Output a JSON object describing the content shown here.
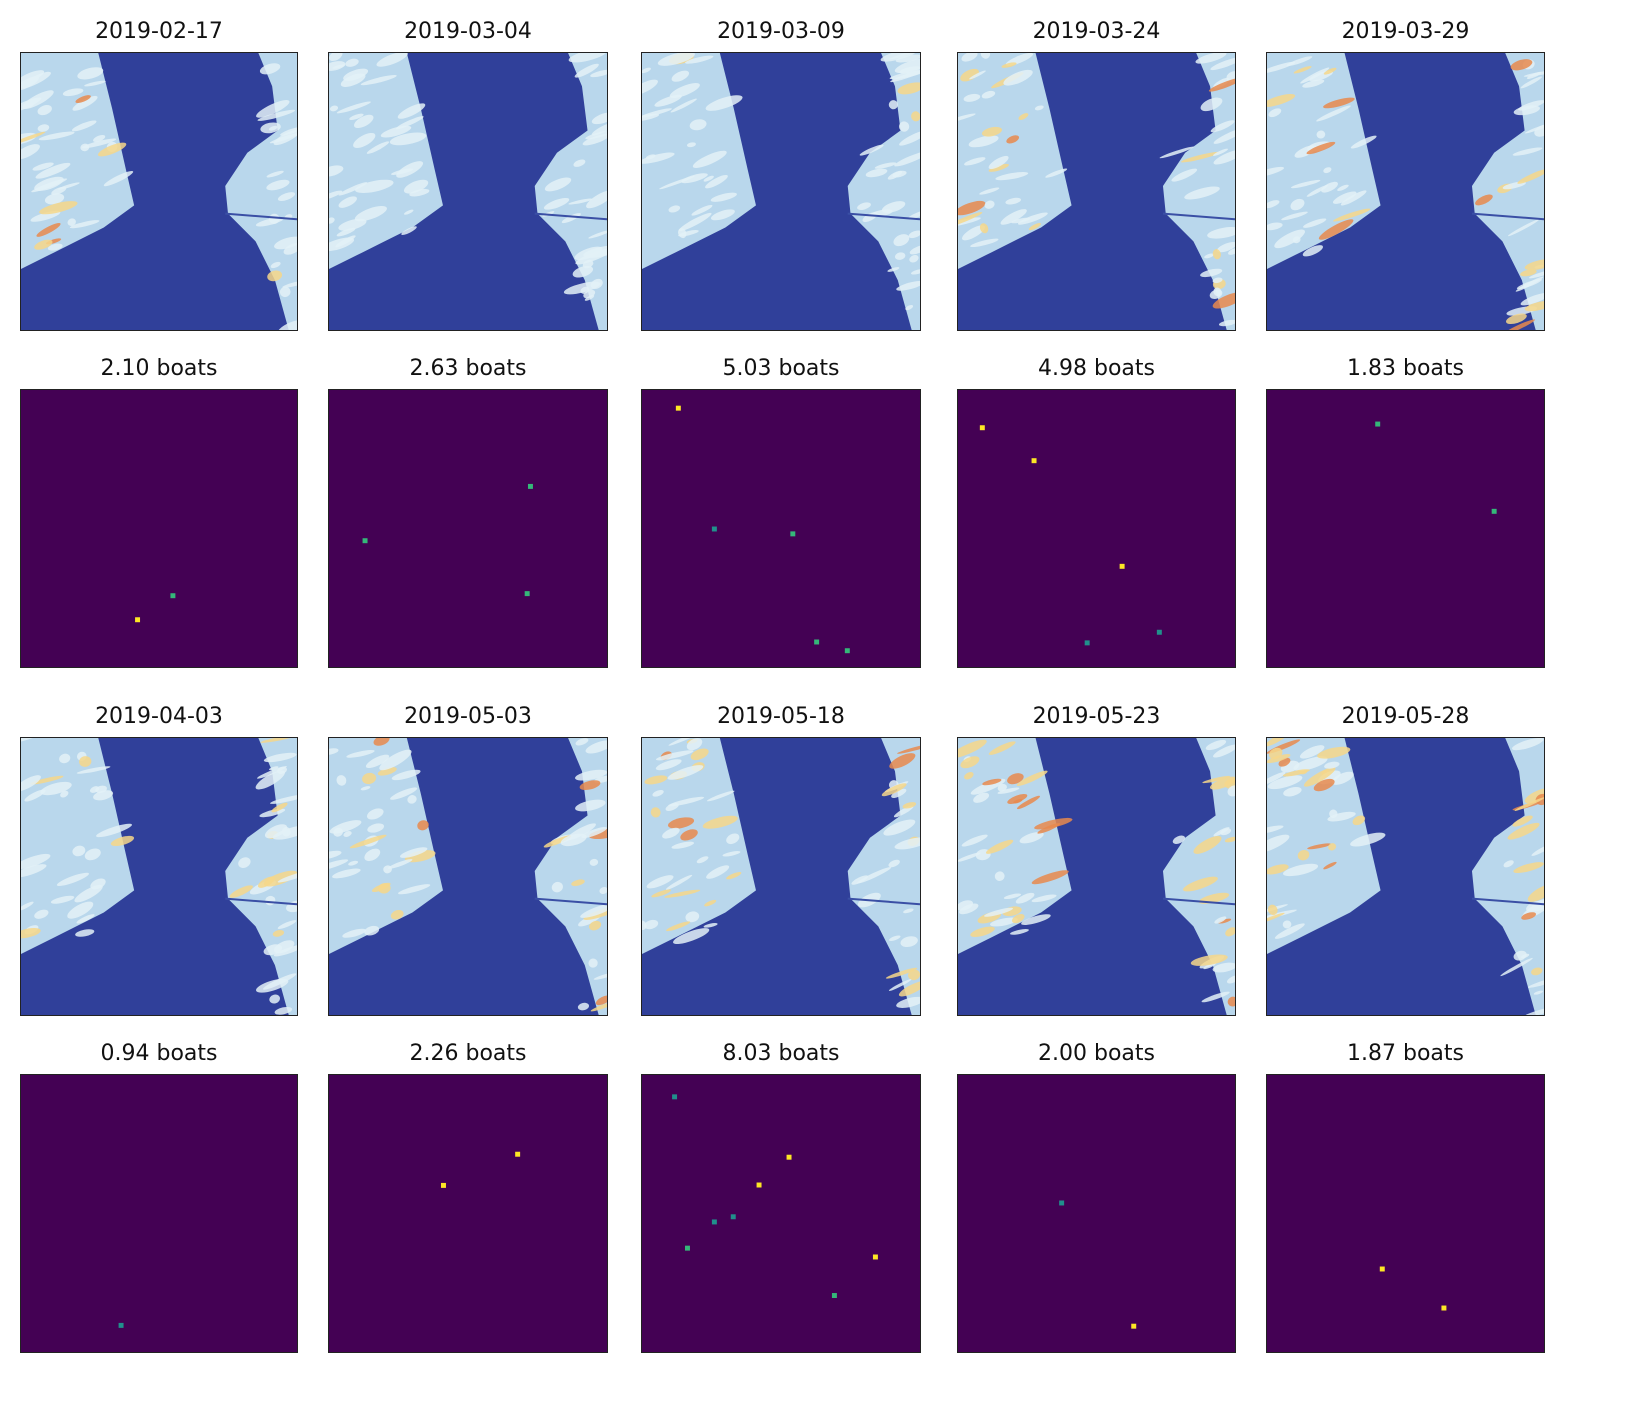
{
  "figure": {
    "colors": {
      "water": "#30409a",
      "water_light": "#3a4fa5",
      "land_base": "#b9d7ec",
      "land_light": "#e3f1f7",
      "land_warm": "#f6d78a",
      "land_hot": "#e8894e",
      "heatmap_bg": "#440154",
      "heat_low": "#21908c",
      "heat_mid": "#35b779",
      "heat_high": "#fde725"
    },
    "rows": [
      {
        "kind": "satellite",
        "panels": [
          {
            "title": "2019-02-17",
            "warmth": 0.25
          },
          {
            "title": "2019-03-04",
            "warmth": 0.05
          },
          {
            "title": "2019-03-09",
            "warmth": 0.05
          },
          {
            "title": "2019-03-24",
            "warmth": 0.55
          },
          {
            "title": "2019-03-29",
            "warmth": 0.75
          }
        ]
      },
      {
        "kind": "heatmap",
        "panels": [
          {
            "title": "2.10 boats",
            "count": 2.1
          },
          {
            "title": "2.63 boats",
            "count": 2.63
          },
          {
            "title": "5.03 boats",
            "count": 5.03
          },
          {
            "title": "4.98 boats",
            "count": 4.98
          },
          {
            "title": "1.83 boats",
            "count": 1.83
          }
        ]
      },
      {
        "kind": "satellite",
        "panels": [
          {
            "title": "2019-04-03",
            "warmth": 0.55
          },
          {
            "title": "2019-05-03",
            "warmth": 0.8
          },
          {
            "title": "2019-05-18",
            "warmth": 0.95
          },
          {
            "title": "2019-05-23",
            "warmth": 0.9
          },
          {
            "title": "2019-05-28",
            "warmth": 1.0
          }
        ]
      },
      {
        "kind": "heatmap",
        "panels": [
          {
            "title": "0.94 boats",
            "count": 0.94
          },
          {
            "title": "2.26 boats",
            "count": 2.26
          },
          {
            "title": "8.03 boats",
            "count": 8.03
          },
          {
            "title": "2.00 boats",
            "count": 2.0
          },
          {
            "title": "1.87 boats",
            "count": 1.87
          }
        ]
      }
    ]
  }
}
